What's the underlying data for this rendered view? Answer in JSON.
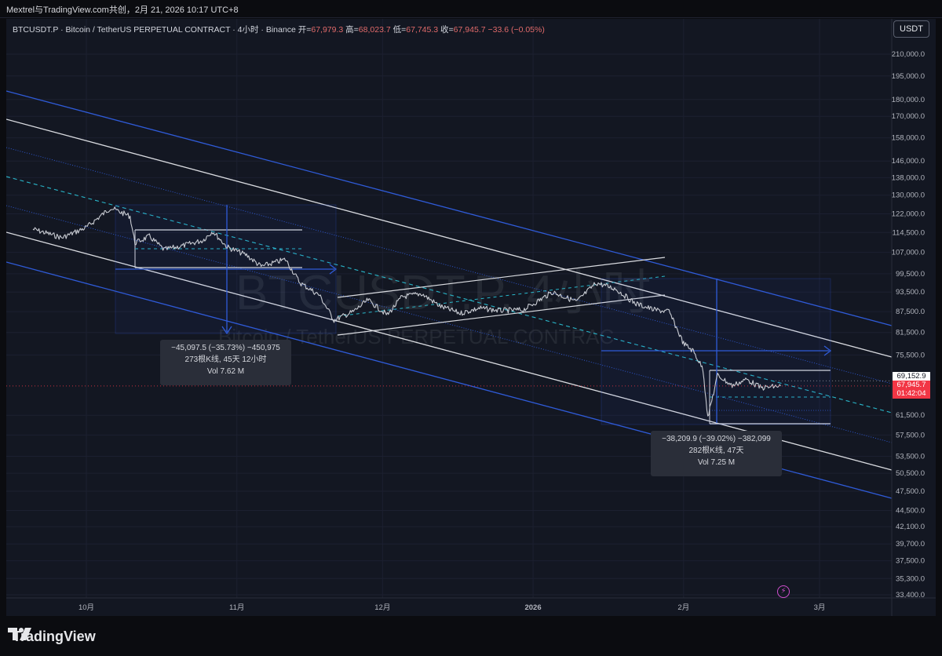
{
  "caption": "Mextrel与TradingView.com共创，2月 21, 2026 10:17 UTC+8",
  "legend": {
    "symbol": "BTCUSDT.P · Bitcoin / TetherUS PERPETUAL CONTRACT · 4小时 · Binance",
    "open_label": "开=",
    "open": "67,979.3",
    "high_label": "高=",
    "high": "68,023.7",
    "low_label": "低=",
    "low": "67,745.3",
    "close_label": "收=",
    "close": "67,945.7",
    "change": "−33.6 (−0.05%)"
  },
  "currency_button": "USDT",
  "watermark": {
    "big": "BTCUSDT.P, 4小时",
    "small": "Bitcoin / TetherUS PERPETUAL CONTRAC"
  },
  "measure_1": {
    "line1": "−45,097.5 (−35.73%) −450,975",
    "line2": "273根K线, 45天 12小时",
    "line3": "Vol 7.62 M"
  },
  "measure_2": {
    "line1": "−38,209.9 (−39.02%) −382,099",
    "line2": "282根K线, 47天",
    "line3": "Vol 7.25 M"
  },
  "price_tags": {
    "level": "69,152.9",
    "last": "67,945.7",
    "countdown": "01:42:04"
  },
  "brand": "TradingView",
  "colors": {
    "background": "#131722",
    "candle": "#c8cbd2",
    "channel_blue": "#2f5bd8",
    "channel_white": "#d9dbe0",
    "midline_cyan": "#29b6c9",
    "down_tag": "#f23645"
  },
  "chart_data": {
    "type": "line",
    "title": "BTCUSDT.P · Bitcoin / TetherUS PERPETUAL CONTRACT · 4小时 · Binance",
    "log_scale": true,
    "ylim": [
      33400,
      225000
    ],
    "y_ticks": [
      210000,
      195000,
      180000,
      170000,
      158000,
      146000,
      138000,
      130000,
      122000,
      114500,
      107000,
      99500,
      93500,
      87500,
      81500,
      75500,
      61500,
      57500,
      53500,
      50500,
      47500,
      44500,
      42100,
      39700,
      37500,
      35300,
      33400
    ],
    "y_tick_labels": [
      "210,000.0",
      "195,000.0",
      "180,000.0",
      "170,000.0",
      "158,000.0",
      "146,000.0",
      "138,000.0",
      "130,000.0",
      "122,000.0",
      "114,500.0",
      "107,000.0",
      "99,500.0",
      "93,500.0",
      "87,500.0",
      "81,500.0",
      "75,500.0",
      "61,500.0",
      "57,500.0",
      "53,500.0",
      "50,500.0",
      "47,500.0",
      "44,500.0",
      "42,100.0",
      "39,700.0",
      "37,500.0",
      "35,300.0",
      "33,400.0"
    ],
    "x_labels": [
      "10月",
      "11月",
      "12月",
      "2026",
      "2月",
      "3月"
    ],
    "x_label_dates": [
      "2025-10-01",
      "2025-11-01",
      "2025-12-01",
      "2026-01-01",
      "2026-02-01",
      "2026-03-01"
    ],
    "x_range": [
      "2025-09-20",
      "2026-03-15"
    ],
    "grid": true,
    "series": [
      {
        "x": [
          "2025-09-20",
          "2025-09-26",
          "2025-10-01",
          "2025-10-06",
          "2025-10-10",
          "2025-10-11",
          "2025-10-14",
          "2025-10-17",
          "2025-10-21",
          "2025-10-25",
          "2025-10-27",
          "2025-10-30",
          "2025-11-03",
          "2025-11-06",
          "2025-11-11",
          "2025-11-14",
          "2025-11-18",
          "2025-11-21",
          "2025-11-25",
          "2025-11-28",
          "2025-12-02",
          "2025-12-05",
          "2025-12-09",
          "2025-12-13",
          "2025-12-17",
          "2025-12-21",
          "2025-12-25",
          "2025-12-30",
          "2026-01-05",
          "2026-01-10",
          "2026-01-14",
          "2026-01-18",
          "2026-01-22",
          "2026-01-26",
          "2026-01-29",
          "2026-02-01",
          "2026-02-03",
          "2026-02-05",
          "2026-02-06",
          "2026-02-08",
          "2026-02-11",
          "2026-02-14",
          "2026-02-17",
          "2026-02-21"
        ],
        "y": [
          115800,
          112500,
          116500,
          124500,
          121000,
          110500,
          113000,
          108000,
          109500,
          111500,
          115000,
          109000,
          106000,
          102000,
          104500,
          96500,
          92500,
          85000,
          87500,
          91000,
          86500,
          92000,
          93000,
          89000,
          87000,
          88500,
          87800,
          88000,
          93500,
          90500,
          96500,
          94500,
          90000,
          88000,
          87500,
          78500,
          76500,
          72000,
          61000,
          70500,
          68000,
          69500,
          67500,
          67945.7
        ]
      }
    ]
  }
}
